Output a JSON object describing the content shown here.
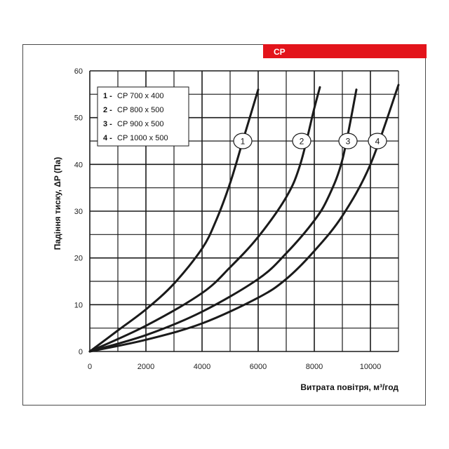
{
  "badge": {
    "label": "CP",
    "color": "#e3141b"
  },
  "chart_data": {
    "type": "line",
    "title": "",
    "xlabel": "Витрата повітря, м³/год",
    "ylabel": "Падіння тиску, ΔP (Па)",
    "xlim": [
      0,
      11000
    ],
    "ylim": [
      0,
      60
    ],
    "x_ticks": [
      0,
      2000,
      4000,
      6000,
      8000,
      10000
    ],
    "y_ticks": [
      0,
      10,
      20,
      30,
      40,
      50,
      60
    ],
    "x_grid_step": 1000,
    "y_grid_step": 5,
    "grid": true,
    "legend_position": "top-left",
    "legend": [
      {
        "num": "1",
        "text": "CP  700 x 400"
      },
      {
        "num": "2",
        "text": "CP  800 x 500"
      },
      {
        "num": "3",
        "text": "CP  900 x 500"
      },
      {
        "num": "4",
        "text": "CP  1000 x 500"
      }
    ],
    "series": [
      {
        "label": "1",
        "x": [
          0,
          1000,
          2000,
          3000,
          4000,
          4500,
          5000,
          5500,
          6000
        ],
        "y": [
          0,
          4.5,
          9,
          14.5,
          22,
          28,
          36,
          46,
          56
        ]
      },
      {
        "label": "2",
        "x": [
          0,
          2000,
          4000,
          5000,
          6000,
          7000,
          7500,
          8000,
          8200
        ],
        "y": [
          0,
          5.5,
          12.5,
          18,
          24.5,
          33,
          40,
          52,
          56.5
        ]
      },
      {
        "label": "3",
        "x": [
          0,
          2000,
          4000,
          6000,
          7000,
          8000,
          8500,
          9000,
          9500
        ],
        "y": [
          0,
          3.5,
          8.5,
          15.5,
          21,
          28,
          33,
          41,
          56
        ]
      },
      {
        "label": "4",
        "x": [
          0,
          2000,
          4000,
          6000,
          7000,
          8000,
          9000,
          10000,
          11000
        ],
        "y": [
          0,
          2.5,
          6,
          11.5,
          15.5,
          21.5,
          29,
          40,
          57
        ]
      }
    ],
    "curve_labels": [
      {
        "text": "1",
        "x": 5450,
        "y": 45
      },
      {
        "text": "2",
        "x": 7550,
        "y": 45
      },
      {
        "text": "3",
        "x": 9200,
        "y": 45
      },
      {
        "text": "4",
        "x": 10250,
        "y": 45
      }
    ]
  }
}
